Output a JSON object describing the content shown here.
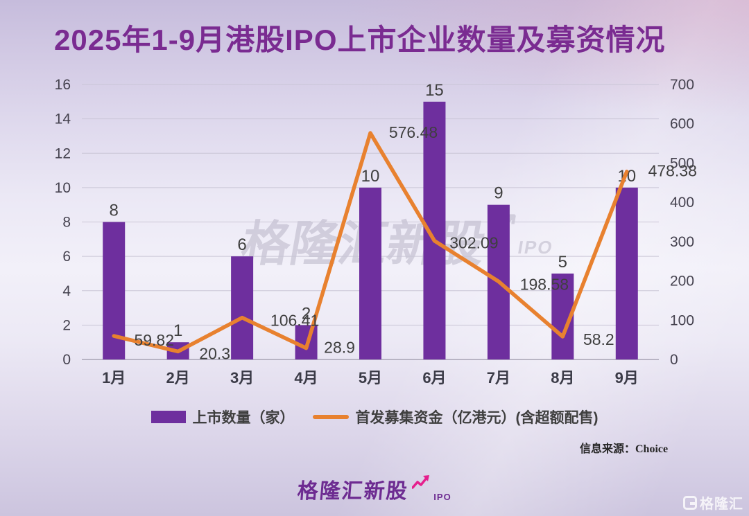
{
  "title": "2025年1-9月港股IPO上市企业数量及募资情况",
  "watermark": {
    "text": "格隆汇新股",
    "arrow": "↗",
    "sub": "IPO"
  },
  "source_note": "信息来源：Choice",
  "footer": {
    "logo_text": "格隆汇新股",
    "logo_arrow": "↗",
    "logo_sub": "IPO"
  },
  "corner_logo": {
    "text": "格隆汇",
    "icon": "gelonghui-g-mark"
  },
  "colors": {
    "title": "#7a2b91",
    "bar": "#6e2f9e",
    "line": "#e8812f",
    "label": "#3f3f3f",
    "tick": "#45424f",
    "gridline": "#c9c5d6",
    "axis_line": "#a7a3b4"
  },
  "chart_data": {
    "type": "bar",
    "subtype": "combo-bar-line",
    "categories": [
      "1月",
      "2月",
      "3月",
      "4月",
      "5月",
      "6月",
      "7月",
      "8月",
      "9月"
    ],
    "series": [
      {
        "name": "上市数量（家）",
        "type": "bar",
        "axis": "left",
        "color": "#6e2f9e",
        "values": [
          8,
          1,
          6,
          2,
          10,
          15,
          9,
          5,
          10
        ],
        "labels": [
          "8",
          "1",
          "6",
          "2",
          "10",
          "15",
          "9",
          "5",
          "10"
        ]
      },
      {
        "name": "首发募集资金（亿港元）(含超额配售)",
        "type": "line",
        "axis": "right",
        "color": "#e8812f",
        "values": [
          59.82,
          20.3,
          106.41,
          28.9,
          576.48,
          302.09,
          198.58,
          58.2,
          478.38
        ],
        "labels": [
          "59.82",
          "20.3",
          "106.41",
          "28.9",
          "576.48",
          "302.09",
          "198.58",
          "58.2",
          "478.38"
        ]
      }
    ],
    "left_axis": {
      "min": 0,
      "max": 16,
      "step": 2,
      "ticks": [
        "0",
        "2",
        "4",
        "6",
        "8",
        "10",
        "12",
        "14",
        "16"
      ]
    },
    "right_axis": {
      "min": 0,
      "max": 700,
      "step": 100,
      "ticks": [
        "0",
        "100",
        "200",
        "300",
        "400",
        "500",
        "600",
        "700"
      ]
    },
    "grid": true,
    "legend_position": "bottom"
  }
}
